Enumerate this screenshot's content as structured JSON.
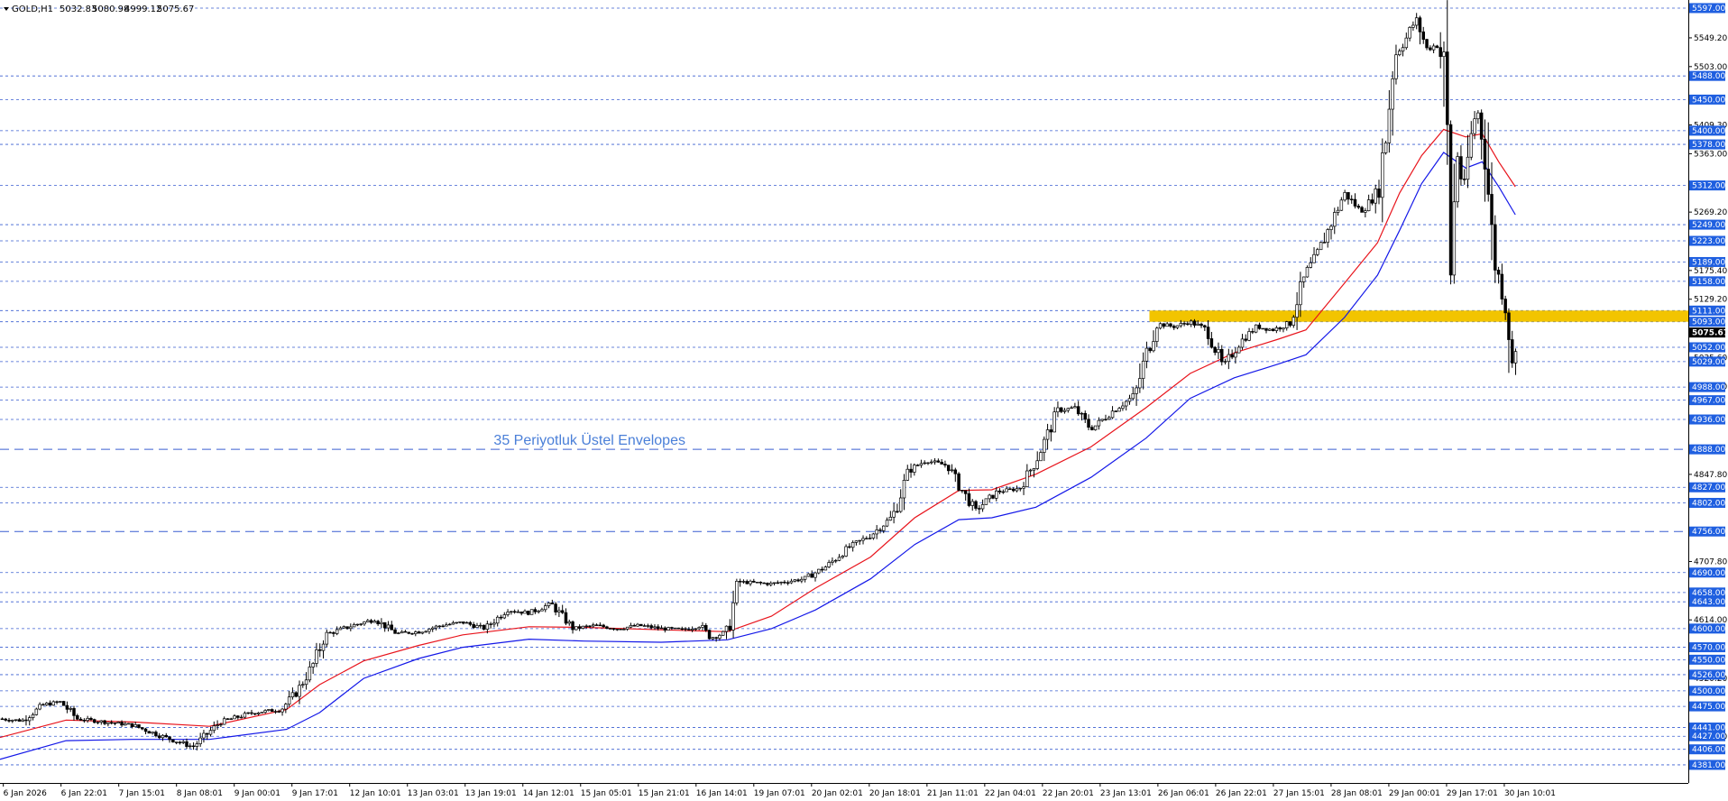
{
  "header": {
    "symbol": "GOLD,H1",
    "open": "5032.83",
    "high": "5080.98",
    "low": "4999.12",
    "close": "5075.67"
  },
  "annotation": {
    "text": "35 Periyotluk Üstel Envelopes",
    "color": "#4a7fd8"
  },
  "colors": {
    "level_line": "#3a5fd0",
    "level_label_bg": "#1f5fe0",
    "upper_envelope": "#e8141c",
    "lower_envelope": "#1418e8",
    "zone": "#f2c400",
    "candle": "#000000"
  },
  "chart_data": {
    "type": "candlestick",
    "title": "",
    "ylim": [
      4365,
      5610
    ],
    "last_price": 5075.67,
    "y_ticks": [
      "5549.20",
      "5503.00",
      "5409.30",
      "5363.00",
      "5269.20",
      "5175.40",
      "5129.20",
      "5035.60",
      "4989.20",
      "4847.80",
      "4707.80",
      "4614.00",
      "4520.20",
      "4426.40"
    ],
    "levels": [
      5597.0,
      5488.0,
      5450.0,
      5400.0,
      5378.0,
      5312.0,
      5249.0,
      5223.0,
      5189.0,
      5158.0,
      5111.0,
      5093.0,
      5052.0,
      5029.0,
      4988.0,
      4967.0,
      4936.0,
      4888.0,
      4827.0,
      4802.0,
      4756.0,
      4690.0,
      4658.0,
      4643.0,
      4600.0,
      4570.0,
      4550.0,
      4526.0,
      4500.0,
      4475.0,
      4441.0,
      4427.0,
      4406.0,
      4381.0
    ],
    "level_labels": [
      "5597.00",
      "5488.00",
      "5450.00",
      "5400.00",
      "5378.00",
      "5312.00",
      "5249.00",
      "5223.00",
      "5189.00",
      "5158.00",
      "5111.00",
      "5093.00",
      "5052.00",
      "5029.00",
      "4988.00",
      "4967.00",
      "4936.00",
      "4888.00",
      "4827.00",
      "4802.00",
      "4756.00",
      "4690.00",
      "4658.00",
      "4643.00",
      "4600.00",
      "4570.00",
      "4550.00",
      "4526.00",
      "4500.00",
      "4475.00",
      "4441.00",
      "4427.00",
      "4406.00",
      "4381.00"
    ],
    "major_levels": [
      4888.0,
      4756.0
    ],
    "zone": [
      5093.0,
      5111.0
    ],
    "x_labels": [
      "6 Jan 2026",
      "6 Jan 22:01",
      "7 Jan 15:01",
      "8 Jan 08:01",
      "9 Jan 00:01",
      "9 Jan 17:01",
      "12 Jan 10:01",
      "13 Jan 03:01",
      "13 Jan 19:01",
      "14 Jan 12:01",
      "15 Jan 05:01",
      "15 Jan 21:01",
      "16 Jan 14:01",
      "19 Jan 07:01",
      "20 Jan 02:01",
      "20 Jan 18:01",
      "21 Jan 11:01",
      "22 Jan 04:01",
      "22 Jan 20:01",
      "23 Jan 13:01",
      "26 Jan 06:01",
      "26 Jan 22:01",
      "27 Jan 15:01",
      "28 Jan 08:01",
      "29 Jan 00:01",
      "29 Jan 17:01",
      "30 Jan 10:01"
    ],
    "price_path": [
      [
        0,
        4455
      ],
      [
        20,
        4452
      ],
      [
        40,
        4478
      ],
      [
        55,
        4482
      ],
      [
        70,
        4455
      ],
      [
        95,
        4450
      ],
      [
        120,
        4445
      ],
      [
        150,
        4425
      ],
      [
        175,
        4410
      ],
      [
        200,
        4450
      ],
      [
        230,
        4465
      ],
      [
        255,
        4470
      ],
      [
        270,
        4500
      ],
      [
        285,
        4545
      ],
      [
        295,
        4590
      ],
      [
        320,
        4605
      ],
      [
        340,
        4615
      ],
      [
        360,
        4592
      ],
      [
        380,
        4595
      ],
      [
        400,
        4605
      ],
      [
        420,
        4610
      ],
      [
        440,
        4600
      ],
      [
        460,
        4630
      ],
      [
        480,
        4625
      ],
      [
        500,
        4640
      ],
      [
        520,
        4600
      ],
      [
        540,
        4605
      ],
      [
        560,
        4600
      ],
      [
        580,
        4605
      ],
      [
        600,
        4600
      ],
      [
        620,
        4598
      ],
      [
        635,
        4605
      ],
      [
        645,
        4585
      ],
      [
        660,
        4595
      ],
      [
        670,
        4675
      ],
      [
        700,
        4672
      ],
      [
        730,
        4680
      ],
      [
        750,
        4700
      ],
      [
        770,
        4730
      ],
      [
        790,
        4750
      ],
      [
        810,
        4780
      ],
      [
        825,
        4855
      ],
      [
        840,
        4870
      ],
      [
        860,
        4862
      ],
      [
        870,
        4830
      ],
      [
        885,
        4790
      ],
      [
        905,
        4820
      ],
      [
        925,
        4825
      ],
      [
        940,
        4870
      ],
      [
        960,
        4950
      ],
      [
        975,
        4955
      ],
      [
        990,
        4920
      ],
      [
        1010,
        4950
      ],
      [
        1030,
        4975
      ],
      [
        1040,
        5040
      ],
      [
        1050,
        5090
      ],
      [
        1065,
        5085
      ],
      [
        1080,
        5093
      ],
      [
        1095,
        5080
      ],
      [
        1110,
        5020
      ],
      [
        1125,
        5060
      ],
      [
        1140,
        5085
      ],
      [
        1155,
        5080
      ],
      [
        1170,
        5090
      ],
      [
        1185,
        5170
      ],
      [
        1195,
        5200
      ],
      [
        1205,
        5240
      ],
      [
        1220,
        5300
      ],
      [
        1235,
        5270
      ],
      [
        1250,
        5300
      ],
      [
        1258,
        5400
      ],
      [
        1265,
        5520
      ],
      [
        1275,
        5545
      ],
      [
        1285,
        5580
      ],
      [
        1295,
        5530
      ],
      [
        1305,
        5540
      ],
      [
        1312,
        5480
      ],
      [
        1316,
        5160
      ],
      [
        1322,
        5370
      ],
      [
        1328,
        5300
      ],
      [
        1334,
        5380
      ],
      [
        1340,
        5440
      ],
      [
        1348,
        5360
      ],
      [
        1355,
        5200
      ],
      [
        1362,
        5150
      ],
      [
        1368,
        5110
      ],
      [
        1372,
        5020
      ],
      [
        1376,
        5075
      ]
    ],
    "upper_envelope": [
      [
        0,
        4425
      ],
      [
        60,
        4453
      ],
      [
        120,
        4450
      ],
      [
        190,
        4443
      ],
      [
        260,
        4470
      ],
      [
        290,
        4510
      ],
      [
        330,
        4548
      ],
      [
        380,
        4573
      ],
      [
        420,
        4590
      ],
      [
        480,
        4603
      ],
      [
        530,
        4602
      ],
      [
        600,
        4598
      ],
      [
        660,
        4595
      ],
      [
        700,
        4620
      ],
      [
        740,
        4665
      ],
      [
        790,
        4715
      ],
      [
        830,
        4778
      ],
      [
        870,
        4822
      ],
      [
        900,
        4823
      ],
      [
        940,
        4848
      ],
      [
        990,
        4892
      ],
      [
        1040,
        4955
      ],
      [
        1080,
        5010
      ],
      [
        1120,
        5043
      ],
      [
        1160,
        5065
      ],
      [
        1185,
        5080
      ],
      [
        1220,
        5155
      ],
      [
        1250,
        5220
      ],
      [
        1270,
        5300
      ],
      [
        1290,
        5360
      ],
      [
        1310,
        5402
      ],
      [
        1330,
        5390
      ],
      [
        1345,
        5395
      ],
      [
        1360,
        5350
      ],
      [
        1375,
        5310
      ]
    ],
    "lower_envelope": [
      [
        0,
        4390
      ],
      [
        60,
        4420
      ],
      [
        120,
        4422
      ],
      [
        190,
        4422
      ],
      [
        260,
        4438
      ],
      [
        290,
        4465
      ],
      [
        330,
        4520
      ],
      [
        380,
        4552
      ],
      [
        420,
        4570
      ],
      [
        480,
        4583
      ],
      [
        530,
        4580
      ],
      [
        600,
        4578
      ],
      [
        660,
        4582
      ],
      [
        700,
        4600
      ],
      [
        740,
        4630
      ],
      [
        790,
        4680
      ],
      [
        830,
        4735
      ],
      [
        870,
        4775
      ],
      [
        900,
        4778
      ],
      [
        940,
        4795
      ],
      [
        990,
        4843
      ],
      [
        1040,
        4906
      ],
      [
        1080,
        4970
      ],
      [
        1120,
        5003
      ],
      [
        1160,
        5025
      ],
      [
        1185,
        5040
      ],
      [
        1220,
        5100
      ],
      [
        1250,
        5168
      ],
      [
        1270,
        5240
      ],
      [
        1290,
        5315
      ],
      [
        1310,
        5365
      ],
      [
        1330,
        5340
      ],
      [
        1345,
        5350
      ],
      [
        1360,
        5310
      ],
      [
        1375,
        5265
      ]
    ]
  }
}
